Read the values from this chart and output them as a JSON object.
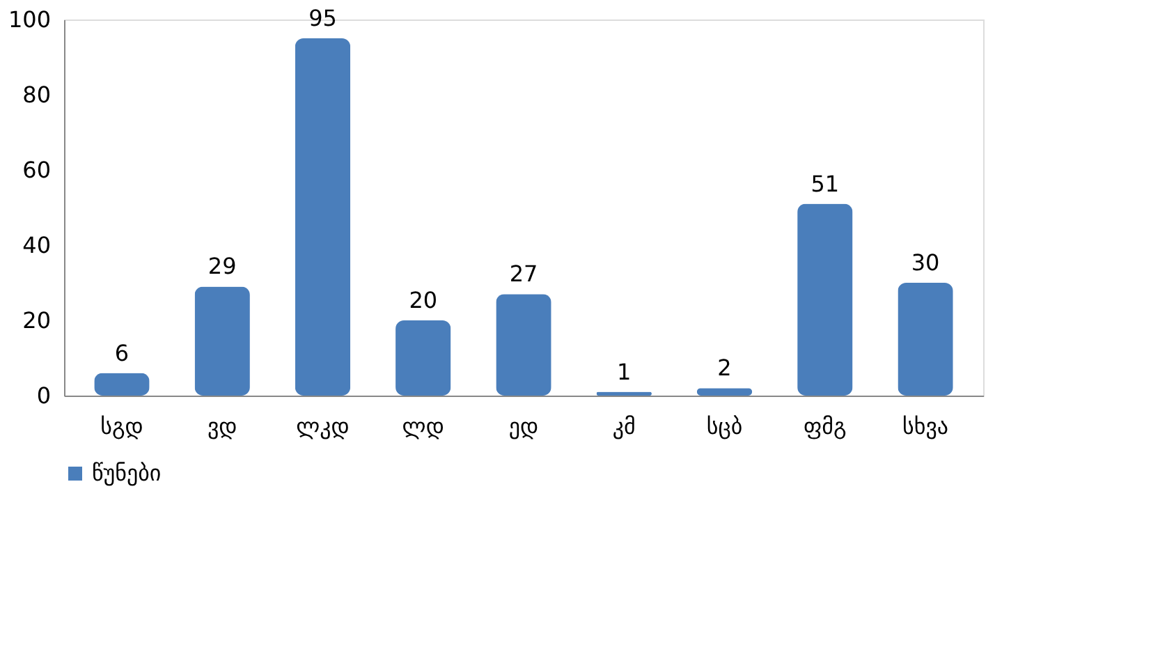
{
  "chart_data": {
    "type": "bar",
    "categories": [
      "სგდ",
      "ვდ",
      "ლკდ",
      "ლდ",
      "ედ",
      "კმ",
      "სცბ",
      "ფმგ",
      "სხვა"
    ],
    "series": [
      {
        "name": "წუნები",
        "color": "#4a7ebb",
        "values": [
          6,
          29,
          95,
          20,
          27,
          1,
          2,
          51,
          30
        ]
      }
    ],
    "ylim": [
      0,
      100
    ],
    "yticks": [
      0,
      20,
      40,
      60,
      80,
      100
    ],
    "grid": false,
    "legend": "bottom",
    "data_labels": true
  }
}
